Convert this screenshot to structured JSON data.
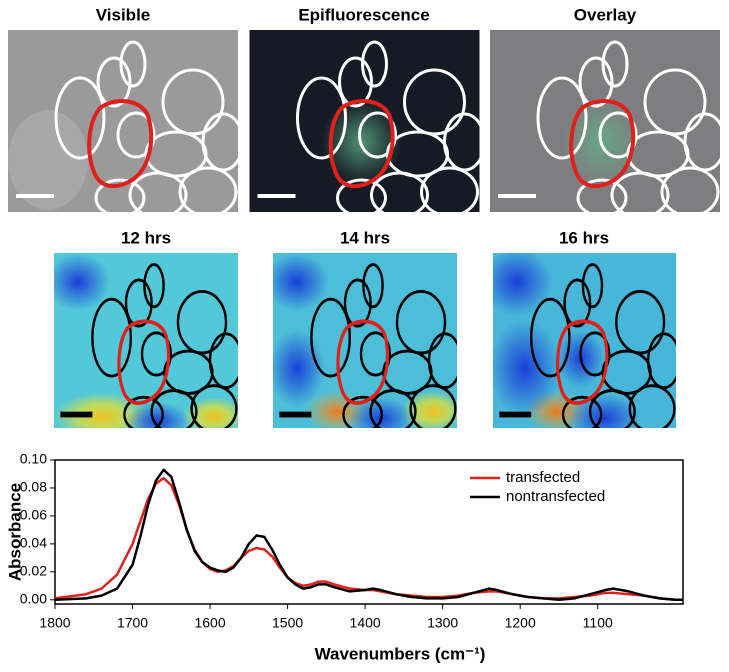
{
  "panels": {
    "top_titles": [
      "Visible",
      "Epifluorescence",
      "Overlay"
    ],
    "middle_titles": [
      "12 hrs",
      "14 hrs",
      "16 hrs"
    ]
  },
  "chart_data": {
    "type": "line",
    "x_label": "Wavenumbers (cm⁻¹)",
    "y_label": "Absorbance",
    "x": [
      1800,
      1760,
      1740,
      1720,
      1700,
      1690,
      1680,
      1670,
      1660,
      1650,
      1640,
      1630,
      1620,
      1610,
      1600,
      1590,
      1580,
      1570,
      1560,
      1550,
      1540,
      1530,
      1520,
      1510,
      1500,
      1490,
      1480,
      1470,
      1460,
      1450,
      1440,
      1420,
      1400,
      1390,
      1380,
      1360,
      1340,
      1320,
      1300,
      1280,
      1260,
      1240,
      1230,
      1210,
      1190,
      1170,
      1150,
      1130,
      1110,
      1090,
      1080,
      1060,
      1040,
      1020,
      1000,
      990
    ],
    "series": [
      {
        "name": "transfected",
        "color": "#e0201a",
        "values": [
          0.001,
          0.004,
          0.008,
          0.018,
          0.04,
          0.056,
          0.072,
          0.083,
          0.087,
          0.082,
          0.068,
          0.05,
          0.036,
          0.027,
          0.022,
          0.02,
          0.021,
          0.024,
          0.03,
          0.035,
          0.037,
          0.036,
          0.031,
          0.023,
          0.016,
          0.012,
          0.01,
          0.011,
          0.013,
          0.013,
          0.011,
          0.008,
          0.007,
          0.007,
          0.006,
          0.004,
          0.003,
          0.002,
          0.002,
          0.003,
          0.005,
          0.006,
          0.006,
          0.004,
          0.002,
          0.001,
          0.001,
          0.002,
          0.003,
          0.005,
          0.005,
          0.004,
          0.003,
          0.001,
          0.0,
          0.0
        ]
      },
      {
        "name": "nontransfected",
        "color": "#000000",
        "values": [
          0.0,
          0.001,
          0.003,
          0.008,
          0.025,
          0.045,
          0.068,
          0.085,
          0.093,
          0.088,
          0.07,
          0.05,
          0.035,
          0.027,
          0.023,
          0.021,
          0.02,
          0.023,
          0.03,
          0.04,
          0.046,
          0.045,
          0.036,
          0.025,
          0.016,
          0.011,
          0.008,
          0.009,
          0.011,
          0.011,
          0.009,
          0.006,
          0.007,
          0.008,
          0.007,
          0.004,
          0.002,
          0.001,
          0.001,
          0.002,
          0.005,
          0.008,
          0.007,
          0.004,
          0.002,
          0.001,
          0.0,
          0.001,
          0.004,
          0.007,
          0.008,
          0.006,
          0.003,
          0.001,
          0.0,
          0.0
        ]
      }
    ],
    "xlim": [
      1800,
      990
    ],
    "ylim": [
      -0.003,
      0.1
    ],
    "xticks": [
      1800,
      1700,
      1600,
      1500,
      1400,
      1300,
      1200,
      1100
    ],
    "yticks": [
      {
        "value": 0,
        "label": "0.00"
      },
      {
        "value": 0.02,
        "label": "0.02"
      },
      {
        "value": 0.04,
        "label": "0.04"
      },
      {
        "value": 0.06,
        "label": "0.06"
      },
      {
        "value": 0.08,
        "label": "0.08"
      },
      {
        "value": 0.1,
        "label": "0.10"
      }
    ],
    "legend": "upper right"
  }
}
